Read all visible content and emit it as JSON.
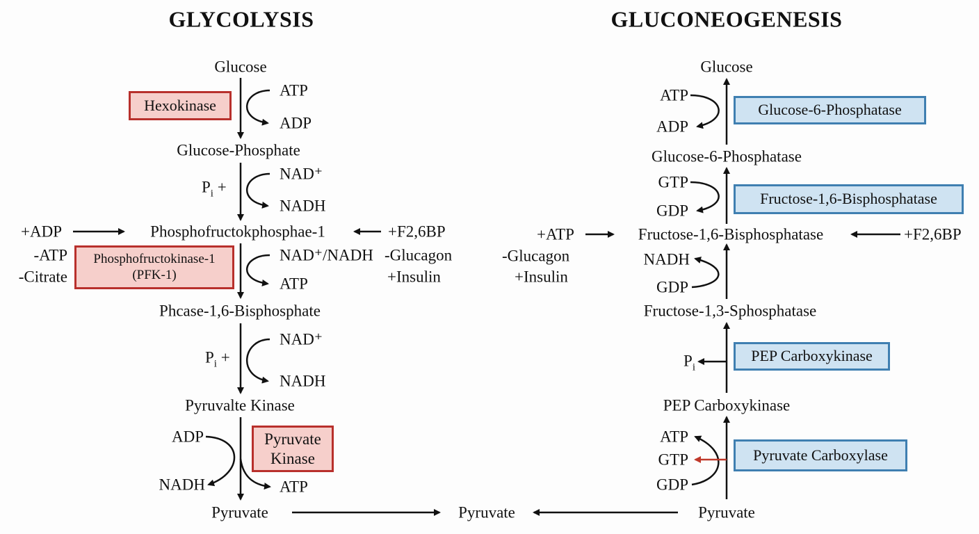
{
  "glycolysis": {
    "title": "GLYCOLYSIS",
    "glucose": "Glucose",
    "hexokinase": "Hexokinase",
    "atp1": "ATP",
    "adp1": "ADP",
    "glucose_phosphate": "Glucose-Phosphate",
    "pi1": "P",
    "pi1_sub": "i",
    "pi1_plus": "+",
    "nadp1": "NAD⁺",
    "nadh1": "NADH",
    "plus_adp": "+ADP",
    "minus_atp": "-ATP",
    "minus_citrate": "-Citrate",
    "pfk_metabolite": "Phosphofructokphosphae-1",
    "f26bp": "+F2,6BP",
    "glucagon": "-Glucagon",
    "insulin": "+Insulin",
    "pfk_enzyme_line1": "Phosphofructokinase-1",
    "pfk_enzyme_line2": "(PFK-1)",
    "nad_nadh": "NAD⁺/NADH",
    "atp2": "ATP",
    "bisphosphate": "Phcase-1,6-Bisphosphate",
    "pi2": "P",
    "pi2_sub": "i",
    "pi2_plus": "+",
    "nadp2": "NAD⁺",
    "nadh2": "NADH",
    "pyruvalte_kinase": "Pyruvalte Kinase",
    "adp3": "ADP",
    "nadh3": "NADH",
    "atp3": "ATP",
    "pk_enzyme_line1": "Pyruvate",
    "pk_enzyme_line2": "Kinase",
    "pyruvate": "Pyruvate"
  },
  "center": {
    "pyruvate": "Pyruvate"
  },
  "gluconeogenesis": {
    "title": "GLUCONEOGENESIS",
    "glucose": "Glucose",
    "atp1": "ATP",
    "adp1": "ADP",
    "g6p_enzyme": "Glucose-6-Phosphatase",
    "g6p_metabolite": "Glucose-6-Phosphatase",
    "gtp1": "GTP",
    "gdp1": "GDP",
    "fbp_enzyme": "Fructose-1,6-Bisphosphatase",
    "plus_atp": "+ATP",
    "fbp_metabolite": "Fructose-1,6-Bisphosphatase",
    "f26bp": "+F2,6BP",
    "glucagon": "-Glucagon",
    "insulin": "+Insulin",
    "nadh": "NADH",
    "gdp2": "GDP",
    "f13": "Fructose-1,3-Sphosphatase",
    "pi": "P",
    "pi_sub": "i",
    "pepck_enzyme": "PEP Carboxykinase",
    "pepck_metabolite": "PEP Carboxykinase",
    "atp2": "ATP",
    "gtp2": "GTP",
    "gdp3": "GDP",
    "pc_enzyme": "Pyruvate Carboxylase",
    "pyruvate": "Pyruvate"
  },
  "colors": {
    "glycolysis_enzyme_fill": "#f6cfcb",
    "glycolysis_enzyme_border": "#b8302c",
    "gluconeo_enzyme_fill": "#cfe3f2",
    "gluconeo_enzyme_border": "#3f7fb1",
    "highlight_arrow": "#c0392b"
  }
}
